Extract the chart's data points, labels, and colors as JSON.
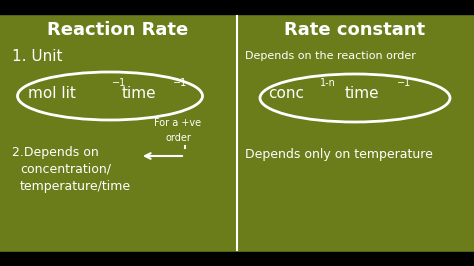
{
  "bg_color": "#6b7c1a",
  "text_color": "#ffffff",
  "title_left": "Reaction Rate",
  "title_right": "Rate constant",
  "left_unit_label": "1. Unit",
  "left_note1": "For a +ve",
  "left_note2": "order",
  "left_depends": "2.Depends on\n   concentration/\n   temperature/time",
  "right_depends1": "Depends on the reaction order",
  "right_depends2": "Depends only on temperature",
  "font_family": "DejaVu Sans",
  "bg_color_dark": "#000000"
}
